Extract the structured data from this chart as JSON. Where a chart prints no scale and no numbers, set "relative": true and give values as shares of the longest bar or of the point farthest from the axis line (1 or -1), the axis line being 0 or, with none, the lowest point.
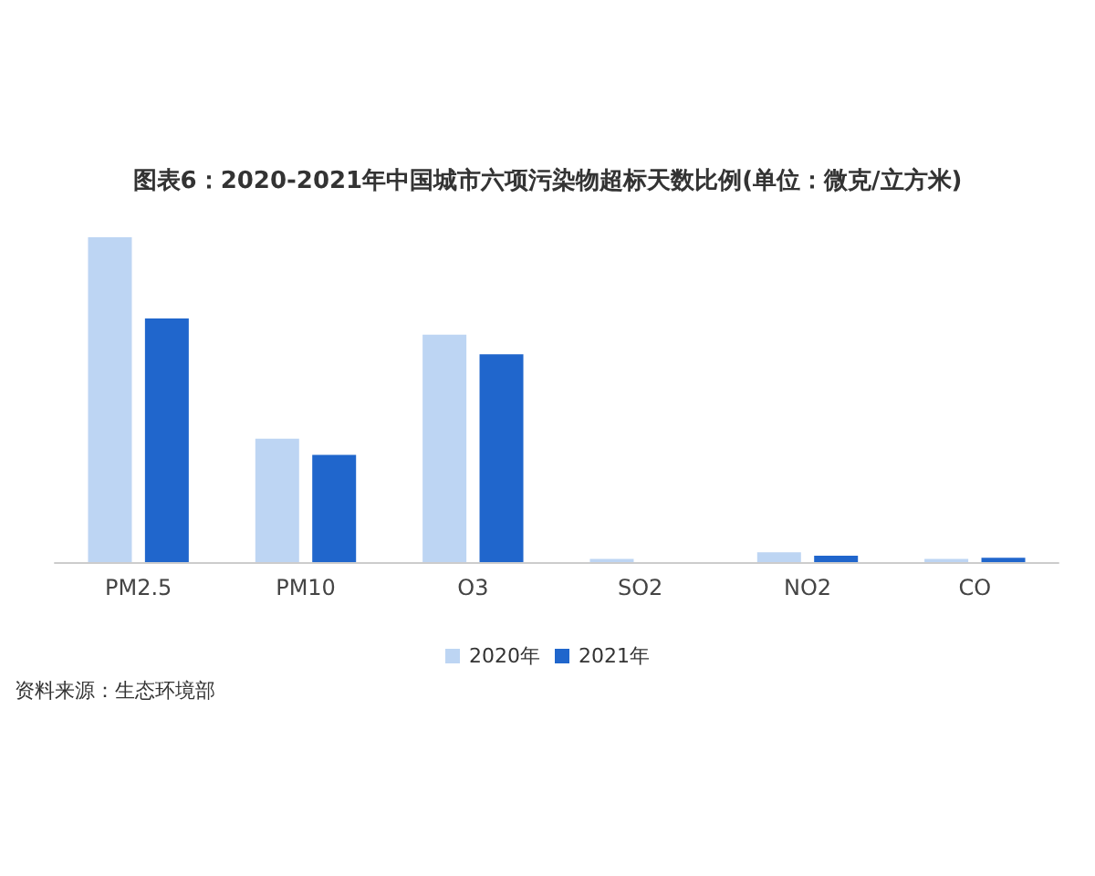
{
  "chart_data": {
    "type": "bar",
    "title": "图表6：2020-2021年中国城市六项污染物超标天数比例(单位：微克/立方米)",
    "categories": [
      "PM2.5",
      "PM10",
      "O3",
      "SO2",
      "NO2",
      "CO"
    ],
    "relative": true,
    "series": [
      {
        "name": "2020年",
        "color": "#bdd5f3",
        "values": [
          1,
          0.38,
          0.7,
          0.01,
          0.03,
          0.01
        ]
      },
      {
        "name": "2021年",
        "color": "#2066cc",
        "values": [
          0.75,
          0.33,
          0.64,
          0,
          0.02,
          0.013
        ]
      }
    ],
    "legend": "bottom",
    "annotations": [
      "资料来源：生态环境部"
    ]
  }
}
